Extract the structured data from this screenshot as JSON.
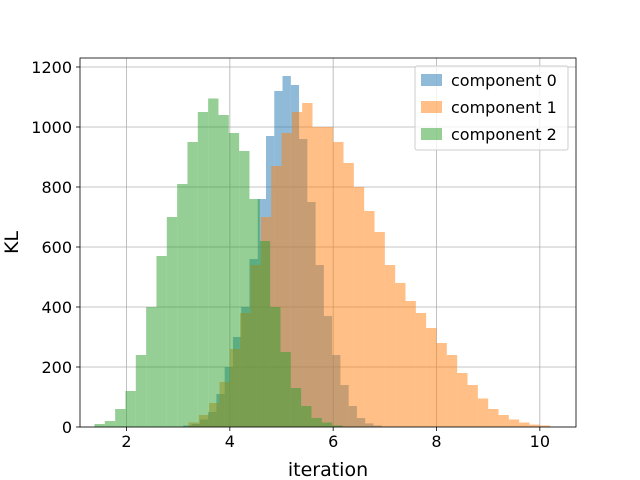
{
  "chart_data": {
    "type": "bar",
    "subtype": "histogram",
    "xlabel": "iteration",
    "ylabel": "KL",
    "xlim": [
      1.1,
      10.7
    ],
    "ylim": [
      0,
      1230
    ],
    "xticks": [
      2,
      4,
      6,
      8,
      10
    ],
    "yticks": [
      0,
      200,
      400,
      600,
      800,
      1000,
      1200
    ],
    "grid": true,
    "legend_position": "top-right",
    "series": [
      {
        "name": "component 0",
        "color": "#1f77b4",
        "alpha": 0.5,
        "bin_start": 3.1,
        "bin_width": 0.16,
        "counts": [
          5,
          10,
          25,
          50,
          110,
          200,
          300,
          400,
          560,
          760,
          970,
          1120,
          1170,
          1140,
          960,
          750,
          540,
          370,
          240,
          140,
          70,
          30,
          12,
          5
        ]
      },
      {
        "name": "component 1",
        "color": "#ff7f0e",
        "alpha": 0.5,
        "bin_start": 3.2,
        "bin_width": 0.2,
        "counts": [
          15,
          40,
          80,
          150,
          260,
          380,
          540,
          700,
          870,
          980,
          1050,
          1080,
          1000,
          1000,
          950,
          880,
          800,
          720,
          650,
          540,
          480,
          420,
          380,
          330,
          280,
          240,
          180,
          140,
          95,
          60,
          40,
          25,
          15,
          8,
          5
        ]
      },
      {
        "name": "component 2",
        "color": "#2ca02c",
        "alpha": 0.5,
        "bin_start": 1.38,
        "bin_width": 0.2,
        "counts": [
          10,
          20,
          60,
          120,
          240,
          400,
          570,
          700,
          810,
          950,
          1050,
          1095,
          1040,
          980,
          920,
          760,
          620,
          400,
          250,
          130,
          70,
          30,
          15,
          5
        ]
      }
    ]
  }
}
